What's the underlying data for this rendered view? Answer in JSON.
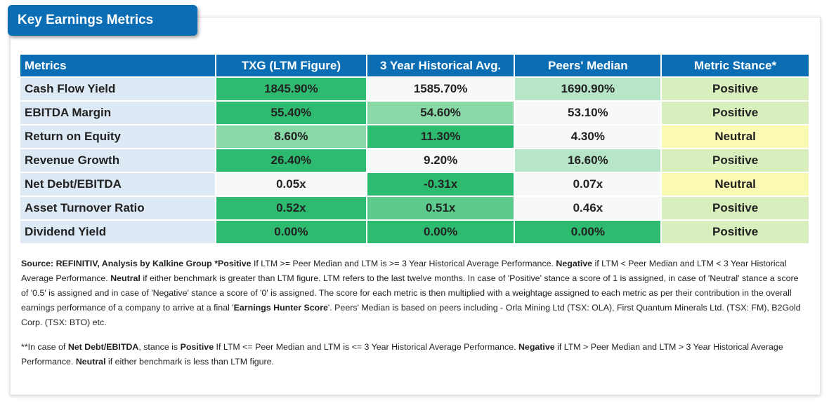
{
  "title": "Key Earnings Metrics",
  "columns": [
    "Metrics",
    "TXG (LTM Figure)",
    "3 Year Historical Avg.",
    "Peers' Median",
    "Metric Stance*"
  ],
  "rows": [
    {
      "metric": "Cash Flow Yield",
      "ltm": "1845.90%",
      "hist": "1585.70%",
      "peer": "1690.90%",
      "stance": "Positive"
    },
    {
      "metric": "EBITDA Margin",
      "ltm": "55.40%",
      "hist": "54.60%",
      "peer": "53.10%",
      "stance": "Positive"
    },
    {
      "metric": "Return on Equity",
      "ltm": "8.60%",
      "hist": "11.30%",
      "peer": "4.30%",
      "stance": "Neutral"
    },
    {
      "metric": "Revenue Growth",
      "ltm": "26.40%",
      "hist": "9.20%",
      "peer": "16.60%",
      "stance": "Positive"
    },
    {
      "metric": "Net Debt/EBITDA",
      "ltm": "0.05x",
      "hist": "-0.31x",
      "peer": "0.07x",
      "stance": "Neutral"
    },
    {
      "metric": "Asset Turnover Ratio",
      "ltm": "0.52x",
      "hist": "0.51x",
      "peer": "0.46x",
      "stance": "Positive"
    },
    {
      "metric": "Dividend Yield",
      "ltm": "0.00%",
      "hist": "0.00%",
      "peer": "0.00%",
      "stance": "Positive"
    }
  ],
  "notes": {
    "p1": [
      {
        "b": true,
        "t": "Source: REFINITIV, Analysis by Kalkine Group  *Positive"
      },
      {
        "b": false,
        "t": " If LTM >= Peer Median and LTM is >= 3 Year Historical Average Performance. "
      },
      {
        "b": true,
        "t": "Negative"
      },
      {
        "b": false,
        "t": " if LTM < Peer Median and LTM < 3 Year Historical Average Performance. "
      },
      {
        "b": true,
        "t": "Neutral"
      },
      {
        "b": false,
        "t": " if either benchmark is greater than LTM figure. LTM refers to the last twelve months. In case of 'Positive' stance a score of 1 is assigned, in case of 'Neutral' stance a score of '0.5' is assigned and in case of 'Negative' stance a score of '0' is assigned. The score for each metric is then multiplied with a weightage assigned to each metric as per their contribution in the overall earnings performance of a company to arrive at a final '"
      },
      {
        "b": true,
        "t": "Earnings Hunter Score"
      },
      {
        "b": false,
        "t": "'. Peers' Median is based on peers including - Orla Mining Ltd  (TSX: OLA), First Quantum Minerals Ltd. (TSX: FM), B2Gold Corp.  (TSX: BTO) etc."
      }
    ],
    "p2": [
      {
        "b": false,
        "t": "**In case of "
      },
      {
        "b": true,
        "t": "Net Debt/EBITDA"
      },
      {
        "b": false,
        "t": ", stance is "
      },
      {
        "b": true,
        "t": "Positive"
      },
      {
        "b": false,
        "t": " If LTM <= Peer Median and LTM is <= 3 Year Historical Average Performance. "
      },
      {
        "b": true,
        "t": "Negative"
      },
      {
        "b": false,
        "t": " if LTM > Peer Median and LTM > 3 Year Historical Average Performance. "
      },
      {
        "b": true,
        "t": "Neutral"
      },
      {
        "b": false,
        "t": " if either benchmark is less than LTM figure."
      }
    ]
  },
  "colors": {
    "header_blue": "#0b6db3",
    "label_bg": "#dde9f5",
    "dark_green": "#2dbb6f",
    "medium_green": "#89d9a7",
    "light_green": "#b6e5c8",
    "positive_bg": "#d8eebd",
    "neutral_bg": "#fafab5"
  }
}
